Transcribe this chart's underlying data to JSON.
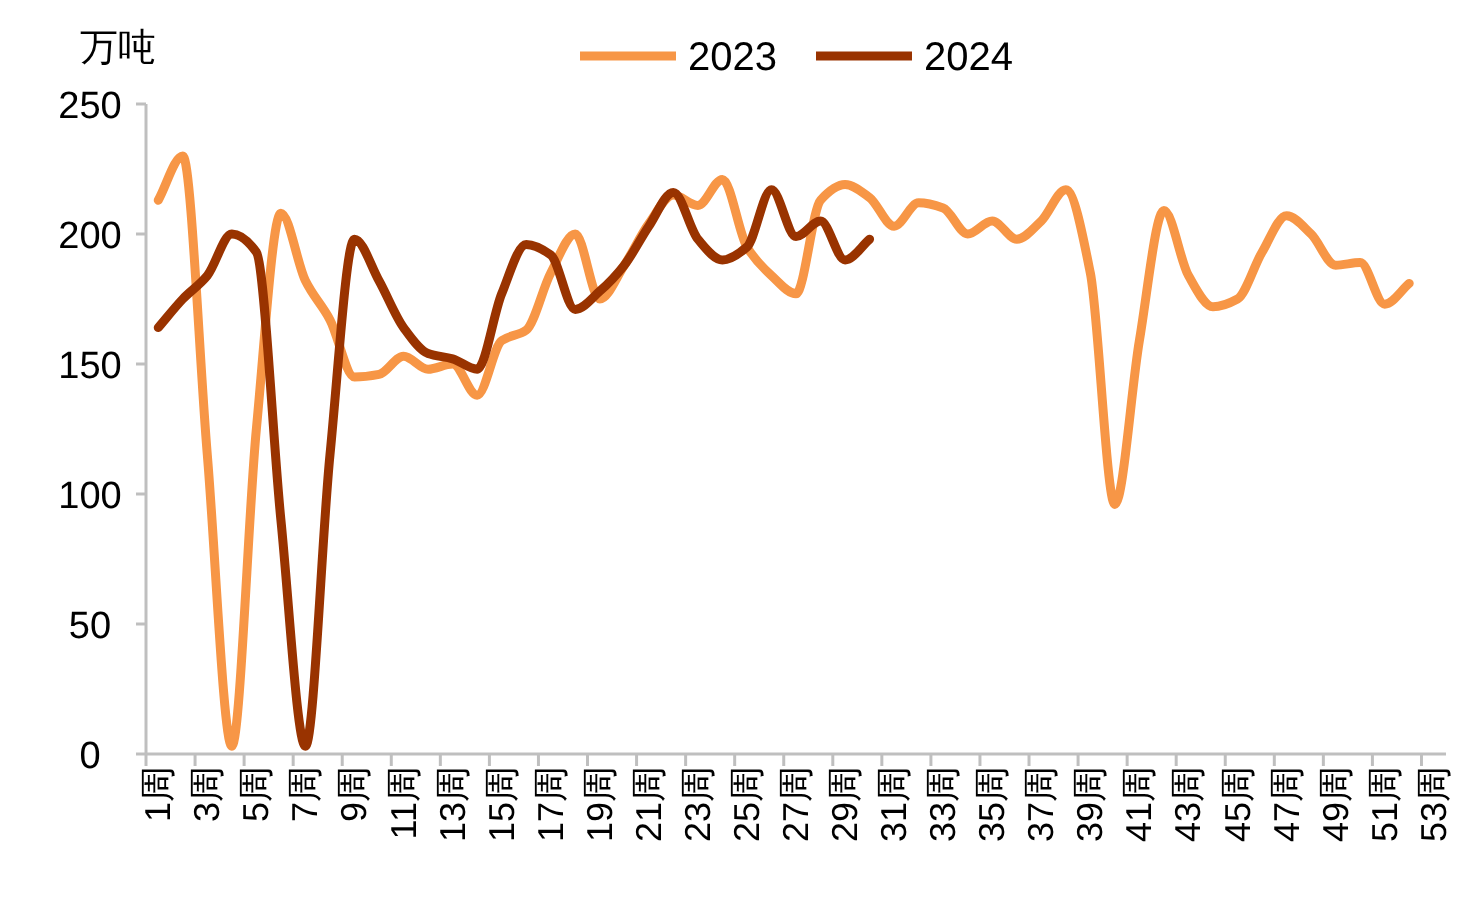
{
  "chart_data": {
    "type": "line",
    "ylabel": "万吨",
    "legend": "top",
    "grid": false,
    "marker": "none",
    "line_style": "solid",
    "categories": [
      "1周",
      null,
      "3周",
      null,
      "5周",
      null,
      "7周",
      null,
      "9周",
      null,
      "11周",
      null,
      "13周",
      null,
      "15周",
      null,
      "17周",
      null,
      "19周",
      null,
      "21周",
      null,
      "23周",
      null,
      "25周",
      null,
      "27周",
      null,
      "29周",
      null,
      "31周",
      null,
      "33周",
      null,
      "35周",
      null,
      "37周",
      null,
      "39周",
      null,
      "41周",
      null,
      "43周",
      null,
      "45周",
      null,
      "47周",
      null,
      "49周",
      null,
      "51周",
      null,
      "53周"
    ],
    "ylim": [
      0,
      250
    ],
    "yticks": [
      0,
      50,
      100,
      150,
      200,
      250
    ],
    "series": [
      {
        "name": "2023",
        "color": "#f79646",
        "values": [
          213,
          230,
          115,
          3,
          125,
          208,
          182,
          167,
          145,
          146,
          153,
          148,
          150,
          138,
          159,
          163,
          185,
          200,
          175,
          188,
          204,
          215,
          211,
          221,
          195,
          184,
          177,
          213,
          219,
          214,
          203,
          212,
          210,
          200,
          205,
          198,
          205,
          217,
          185,
          96,
          159,
          209,
          184,
          172,
          175,
          193,
          207,
          200,
          188,
          189,
          173,
          181,
          null
        ]
      },
      {
        "name": "2024",
        "color": "#993300",
        "values": [
          164,
          175,
          184,
          200,
          193,
          90,
          3,
          115,
          198,
          182,
          164,
          154,
          152,
          148,
          177,
          196,
          192,
          171,
          178,
          188,
          203,
          216,
          198,
          190,
          195,
          217,
          199,
          205,
          190,
          198,
          null,
          null,
          null,
          null,
          null,
          null,
          null,
          null,
          null,
          null,
          null,
          null,
          null,
          null,
          null,
          null,
          null,
          null,
          null,
          null,
          null,
          null,
          null
        ]
      }
    ]
  }
}
